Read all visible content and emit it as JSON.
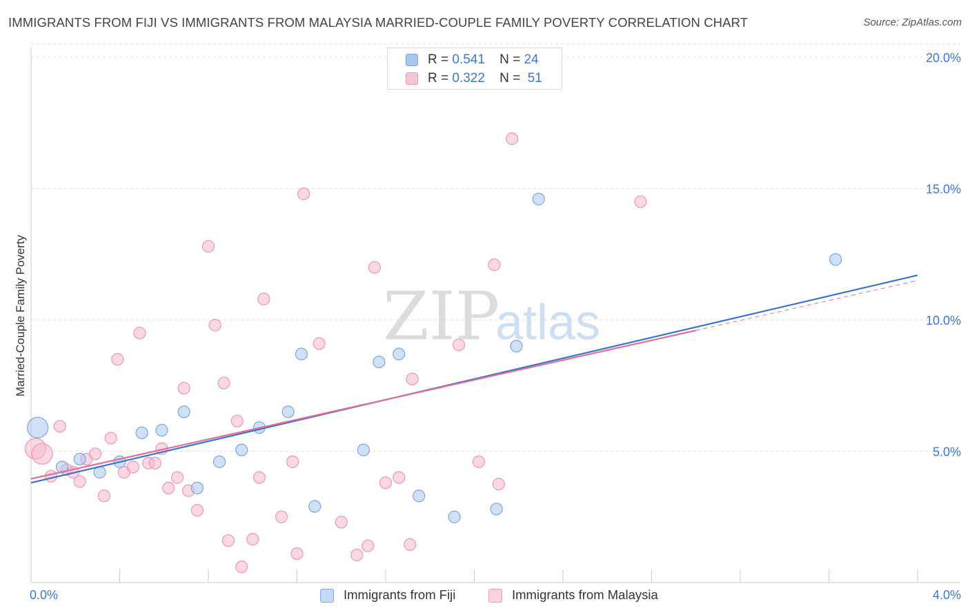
{
  "header": {
    "title": "IMMIGRANTS FROM FIJI VS IMMIGRANTS FROM MALAYSIA MARRIED-COUPLE FAMILY POVERTY CORRELATION CHART",
    "source": "Source: ZipAtlas.com"
  },
  "watermark": {
    "zip": "ZIP",
    "atlas": "atlas"
  },
  "legend": {
    "fiji": {
      "r_label": "R =",
      "r_value": "0.541",
      "n_label": "N =",
      "n_value": "24"
    },
    "malaysia": {
      "r_label": "R =",
      "r_value": "0.322",
      "n_label": "N =",
      "n_value": "51"
    }
  },
  "colors": {
    "fiji_fill": "#a9c8f0",
    "fiji_stroke": "#7aa6e0",
    "fiji_line": "#3a72d0",
    "malaysia_fill": "#f6b9cc",
    "malaysia_stroke": "#ee96b2",
    "malaysia_line": "#e0709a",
    "axis_label": "#3a78d8",
    "grid": "#dddddd"
  },
  "chart_data": {
    "type": "scatter",
    "title": "IMMIGRANTS FROM FIJI VS IMMIGRANTS FROM MALAYSIA MARRIED-COUPLE FAMILY POVERTY CORRELATION CHART",
    "xlabel": "",
    "ylabel": "Married-Couple Family Poverty",
    "xlim": [
      0,
      4.0
    ],
    "ylim": [
      0,
      20.5
    ],
    "x_tick_labels": [
      "0.0%",
      "4.0%"
    ],
    "y_ticks": [
      5,
      10,
      15,
      20
    ],
    "y_tick_labels": [
      "5.0%",
      "10.0%",
      "15.0%",
      "20.0%"
    ],
    "grid": true,
    "legend_position": "bottom-center",
    "series": [
      {
        "name": "Immigrants from Fiji",
        "r": 0.541,
        "n": 24,
        "trend": {
          "x": [
            0.0,
            4.0
          ],
          "y": [
            3.8,
            11.7
          ]
        },
        "points": [
          {
            "x": 0.03,
            "y": 5.9,
            "size": "large"
          },
          {
            "x": 0.14,
            "y": 4.4
          },
          {
            "x": 0.22,
            "y": 4.7
          },
          {
            "x": 0.31,
            "y": 4.2
          },
          {
            "x": 0.4,
            "y": 4.6
          },
          {
            "x": 0.5,
            "y": 5.7
          },
          {
            "x": 0.59,
            "y": 5.8
          },
          {
            "x": 0.69,
            "y": 6.5
          },
          {
            "x": 0.75,
            "y": 3.6
          },
          {
            "x": 0.85,
            "y": 4.6
          },
          {
            "x": 0.95,
            "y": 5.05
          },
          {
            "x": 1.03,
            "y": 5.9
          },
          {
            "x": 1.16,
            "y": 6.5
          },
          {
            "x": 1.22,
            "y": 8.7
          },
          {
            "x": 1.28,
            "y": 2.9
          },
          {
            "x": 1.5,
            "y": 5.05
          },
          {
            "x": 1.57,
            "y": 8.4
          },
          {
            "x": 1.66,
            "y": 8.7
          },
          {
            "x": 1.75,
            "y": 3.3
          },
          {
            "x": 1.91,
            "y": 2.5
          },
          {
            "x": 2.1,
            "y": 2.8
          },
          {
            "x": 2.19,
            "y": 9.0
          },
          {
            "x": 2.29,
            "y": 14.6
          },
          {
            "x": 3.63,
            "y": 12.3
          }
        ]
      },
      {
        "name": "Immigrants from Malaysia",
        "r": 0.322,
        "n": 51,
        "trend": {
          "x": [
            0.0,
            3.0
          ],
          "y": [
            3.95,
            9.6
          ]
        },
        "trend_dashed_extension": {
          "x": [
            3.0,
            4.0
          ],
          "y": [
            9.6,
            11.5
          ]
        },
        "points": [
          {
            "x": 0.02,
            "y": 5.1,
            "size": "large"
          },
          {
            "x": 0.05,
            "y": 4.9,
            "size": "large"
          },
          {
            "x": 0.09,
            "y": 4.05
          },
          {
            "x": 0.13,
            "y": 5.95
          },
          {
            "x": 0.16,
            "y": 4.3
          },
          {
            "x": 0.19,
            "y": 4.2
          },
          {
            "x": 0.22,
            "y": 3.85
          },
          {
            "x": 0.25,
            "y": 4.7
          },
          {
            "x": 0.29,
            "y": 4.9
          },
          {
            "x": 0.33,
            "y": 3.3
          },
          {
            "x": 0.36,
            "y": 5.5
          },
          {
            "x": 0.39,
            "y": 8.5
          },
          {
            "x": 0.42,
            "y": 4.2
          },
          {
            "x": 0.46,
            "y": 4.4
          },
          {
            "x": 0.49,
            "y": 9.5
          },
          {
            "x": 0.53,
            "y": 4.55
          },
          {
            "x": 0.56,
            "y": 4.55
          },
          {
            "x": 0.59,
            "y": 5.1
          },
          {
            "x": 0.62,
            "y": 3.6
          },
          {
            "x": 0.66,
            "y": 4.0
          },
          {
            "x": 0.69,
            "y": 7.4
          },
          {
            "x": 0.71,
            "y": 3.5
          },
          {
            "x": 0.75,
            "y": 2.75
          },
          {
            "x": 0.8,
            "y": 12.8
          },
          {
            "x": 0.83,
            "y": 9.8
          },
          {
            "x": 0.87,
            "y": 7.6
          },
          {
            "x": 0.89,
            "y": 1.6
          },
          {
            "x": 0.93,
            "y": 6.15
          },
          {
            "x": 0.95,
            "y": 0.6
          },
          {
            "x": 1.0,
            "y": 1.65
          },
          {
            "x": 1.03,
            "y": 4.0
          },
          {
            "x": 1.05,
            "y": 10.8
          },
          {
            "x": 1.13,
            "y": 2.5
          },
          {
            "x": 1.18,
            "y": 4.6
          },
          {
            "x": 1.2,
            "y": 1.1
          },
          {
            "x": 1.23,
            "y": 14.8
          },
          {
            "x": 1.3,
            "y": 9.1
          },
          {
            "x": 1.4,
            "y": 2.3
          },
          {
            "x": 1.47,
            "y": 1.05
          },
          {
            "x": 1.52,
            "y": 1.4
          },
          {
            "x": 1.55,
            "y": 12.0
          },
          {
            "x": 1.6,
            "y": 3.8
          },
          {
            "x": 1.66,
            "y": 4.0
          },
          {
            "x": 1.71,
            "y": 1.45
          },
          {
            "x": 1.72,
            "y": 7.75
          },
          {
            "x": 1.93,
            "y": 9.05
          },
          {
            "x": 2.02,
            "y": 4.6
          },
          {
            "x": 2.09,
            "y": 12.1
          },
          {
            "x": 2.11,
            "y": 3.75
          },
          {
            "x": 2.17,
            "y": 16.9
          },
          {
            "x": 2.75,
            "y": 14.5
          }
        ]
      }
    ]
  }
}
